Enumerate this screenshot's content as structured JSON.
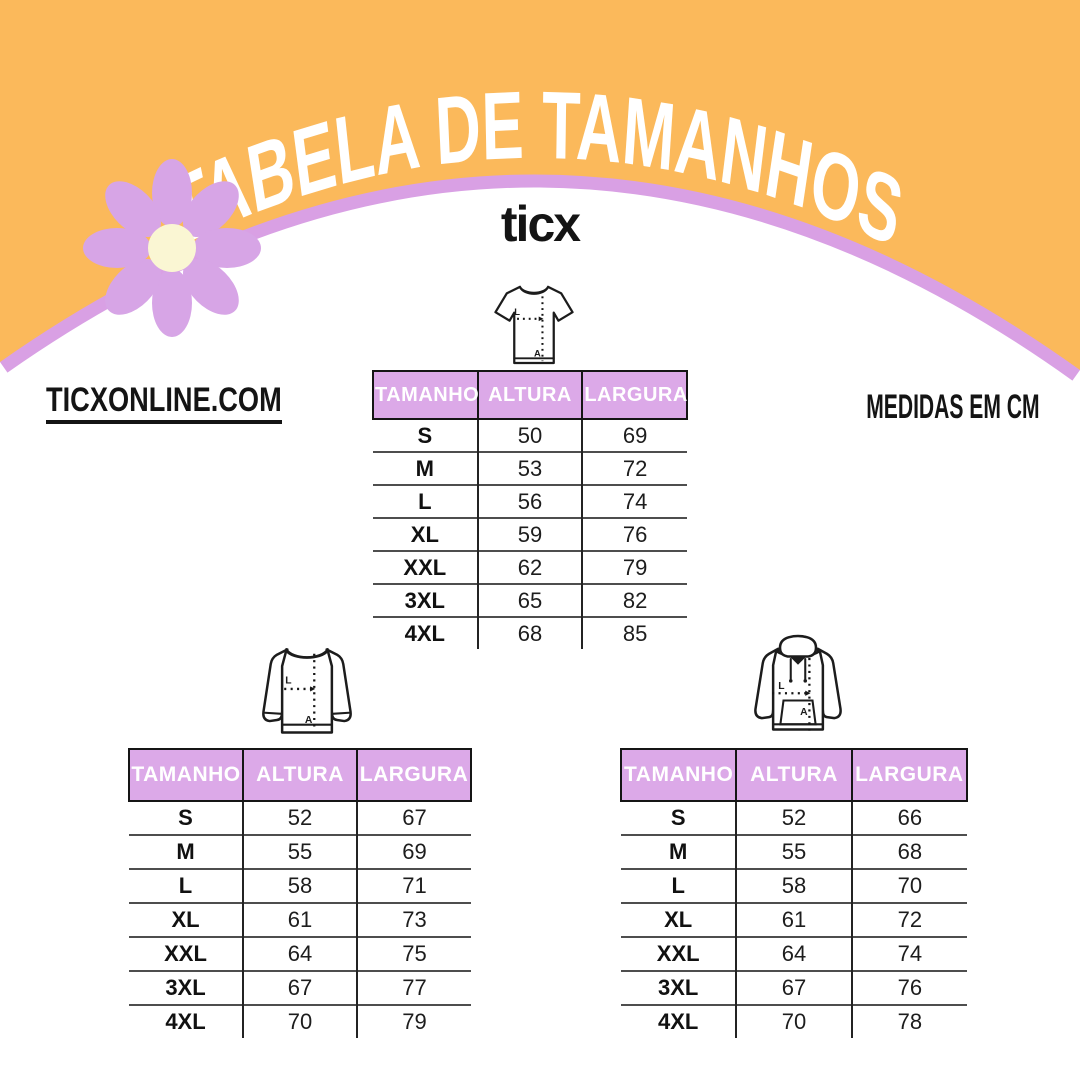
{
  "header": {
    "title": "TABELA DE TAMANHOS",
    "brand": "ticx",
    "website": "TICXONLINE.COM",
    "units_note": "MEDIDAS EM CM"
  },
  "colors": {
    "orange": "#FBB95B",
    "lilac": "#D9A0E4",
    "header-lilac": "#DCA9E8",
    "petal": "#D7A5E6",
    "cream": "#FAF6D3"
  },
  "measure_labels": {
    "width_abbr": "L",
    "height_abbr": "A"
  },
  "columns": [
    "TAMANHO",
    "ALTURA",
    "LARGURA"
  ],
  "tables": [
    {
      "garment": "tshirt",
      "rows": [
        {
          "size": "S",
          "altura": "50",
          "largura": "69"
        },
        {
          "size": "M",
          "altura": "53",
          "largura": "72"
        },
        {
          "size": "L",
          "altura": "56",
          "largura": "74"
        },
        {
          "size": "XL",
          "altura": "59",
          "largura": "76"
        },
        {
          "size": "XXL",
          "altura": "62",
          "largura": "79"
        },
        {
          "size": "3XL",
          "altura": "65",
          "largura": "82"
        },
        {
          "size": "4XL",
          "altura": "68",
          "largura": "85"
        }
      ]
    },
    {
      "garment": "sweatshirt",
      "rows": [
        {
          "size": "S",
          "altura": "52",
          "largura": "67"
        },
        {
          "size": "M",
          "altura": "55",
          "largura": "69"
        },
        {
          "size": "L",
          "altura": "58",
          "largura": "71"
        },
        {
          "size": "XL",
          "altura": "61",
          "largura": "73"
        },
        {
          "size": "XXL",
          "altura": "64",
          "largura": "75"
        },
        {
          "size": "3XL",
          "altura": "67",
          "largura": "77"
        },
        {
          "size": "4XL",
          "altura": "70",
          "largura": "79"
        }
      ]
    },
    {
      "garment": "hoodie",
      "rows": [
        {
          "size": "S",
          "altura": "52",
          "largura": "66"
        },
        {
          "size": "M",
          "altura": "55",
          "largura": "68"
        },
        {
          "size": "L",
          "altura": "58",
          "largura": "70"
        },
        {
          "size": "XL",
          "altura": "61",
          "largura": "72"
        },
        {
          "size": "XXL",
          "altura": "64",
          "largura": "74"
        },
        {
          "size": "3XL",
          "altura": "67",
          "largura": "76"
        },
        {
          "size": "4XL",
          "altura": "70",
          "largura": "78"
        }
      ]
    }
  ]
}
